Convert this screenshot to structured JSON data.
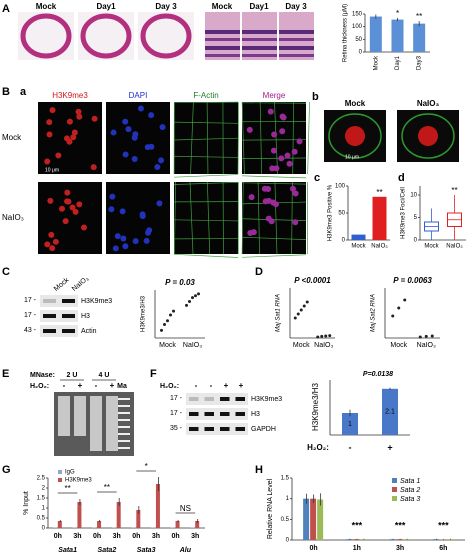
{
  "A": {
    "label": "A",
    "eye_labels": [
      "Mock",
      "Day1",
      "Day 3"
    ],
    "retina_labels": [
      "Mock",
      "Day1",
      "Day 3"
    ],
    "chart": {
      "type": "bar",
      "y_label": "Retina thickness (μM)",
      "categories": [
        "Mock",
        "Day1",
        "Day3"
      ],
      "values": [
        140,
        128,
        112
      ],
      "errors": [
        8,
        6,
        10
      ],
      "ylim": [
        0,
        150
      ],
      "yticks": [
        0,
        50,
        100,
        150
      ],
      "color": "#5b8fd6",
      "significance": [
        null,
        "*",
        "**"
      ]
    }
  },
  "B": {
    "label": "B",
    "sub_a": "a",
    "columns": [
      "H3K9me3",
      "DAPI",
      "F-Actin",
      "Merge"
    ],
    "rows": [
      "Mock",
      "NaIO₃"
    ],
    "scale": "10 μm",
    "sub_b": "b",
    "b_labels": [
      "Mock",
      "NaIO₃"
    ],
    "b_scale": "10 μm",
    "c": {
      "label": "c",
      "type": "bar",
      "y_label": "H3K9me3 Positive %",
      "categories": [
        "Mock",
        "NaIO₃"
      ],
      "values": [
        10,
        80
      ],
      "colors": [
        "#2f5fd0",
        "#e02020"
      ],
      "ylim": [
        0,
        100
      ],
      "yticks": [
        0,
        50,
        100
      ],
      "significance": [
        null,
        "**"
      ]
    },
    "d": {
      "label": "d",
      "type": "box",
      "y_label": "H3K9me3 Foci/Cell",
      "categories": [
        "Mock",
        "NaIO₃"
      ],
      "boxes": [
        [
          0,
          2,
          3,
          4,
          7
        ],
        [
          0,
          3,
          4.5,
          6,
          10
        ]
      ],
      "colors": [
        "#2f5fd0",
        "#e02020"
      ],
      "ylim": [
        0,
        12
      ],
      "yticks": [
        0,
        5,
        10
      ],
      "significance": [
        null,
        "**"
      ]
    }
  },
  "C": {
    "label": "C",
    "blot_lanes": [
      "Mock",
      "NaIO₃"
    ],
    "markers": [
      "17 -",
      "17 -",
      "43 -"
    ],
    "bands": [
      "H3K9me3",
      "H3",
      "Actin"
    ],
    "chart": {
      "type": "scatter",
      "p_value": "P = 0.03",
      "y_label": "H3K9me3/H3",
      "categories": [
        "Mock",
        "NaIO₃"
      ],
      "points": [
        [
          0.4,
          0.7,
          0.9,
          1.2,
          1.4
        ],
        [
          1.7,
          1.9,
          2.1,
          2.2,
          2.3
        ]
      ],
      "ylim": [
        0,
        2.5
      ]
    }
  },
  "D": {
    "label": "D",
    "charts": [
      {
        "type": "scatter",
        "p_value": "P <0.0001",
        "y_label": "Maj Sat1 RNA",
        "categories": [
          "Mock",
          "NaIO₃"
        ],
        "points": [
          [
            1.0,
            1.2,
            1.4,
            1.6,
            1.8
          ],
          [
            0.05,
            0.08,
            0.1,
            0.12
          ]
        ],
        "ylim": [
          0,
          2.5
        ]
      },
      {
        "type": "scatter",
        "p_value": "P = 0.0063",
        "y_label": "Maj Sat2 RNA",
        "categories": [
          "Mock",
          "NaIO₃"
        ],
        "points": [
          [
            1.1,
            1.5,
            1.9
          ],
          [
            0.05,
            0.08,
            0.1
          ]
        ],
        "ylim": [
          0,
          2.5
        ]
      }
    ]
  },
  "E": {
    "label": "E",
    "mnase_label": "MNase:",
    "mnase": [
      "2 U",
      "4 U"
    ],
    "h2o2_label": "H₂O₂:",
    "h2o2": [
      "-",
      "+",
      "-",
      "+"
    ],
    "marker": "Ma"
  },
  "F": {
    "label": "F",
    "h2o2_label": "H₂O₂:",
    "h2o2": [
      "-",
      "-",
      "+",
      "+"
    ],
    "markers": [
      "17 -",
      "17 -",
      "35 -"
    ],
    "bands": [
      "H3K9me3",
      "H3",
      "GAPDH"
    ],
    "chart": {
      "type": "bar",
      "p_value": "P=0.0138",
      "y_label": "H3K9me3/H3",
      "x_label": "H₂O₂:",
      "categories": [
        "-",
        "+"
      ],
      "values": [
        1,
        2.1
      ],
      "errors": [
        0.15,
        0.05
      ],
      "ylim": [
        0,
        2.5
      ],
      "color": "#4a78c8"
    }
  },
  "G": {
    "label": "G",
    "type": "bar",
    "y_label": "% Input",
    "categories": [
      "0h",
      "3h",
      "0h",
      "3h",
      "0h",
      "3h",
      "0h",
      "3h"
    ],
    "groups": [
      "Sata1",
      "Sata2",
      "Sata3",
      "Alu"
    ],
    "series": [
      {
        "name": "IgG",
        "color": "#9aa6c8",
        "values": [
          0.02,
          0.02,
          0.02,
          0.02,
          0.02,
          0.02,
          0.02,
          0.02
        ]
      },
      {
        "name": "H3K9me3",
        "color": "#c0504d",
        "values": [
          0.35,
          1.3,
          0.35,
          1.3,
          0.9,
          2.2,
          0.35,
          0.35
        ],
        "errors": [
          0.05,
          0.15,
          0.05,
          0.2,
          0.2,
          0.35,
          0.05,
          0.1
        ]
      }
    ],
    "ylim": [
      0,
      2.5
    ],
    "yticks": [
      0,
      0.5,
      1,
      1.5,
      2,
      2.5
    ],
    "significance": [
      "**",
      "**",
      "*",
      "NS"
    ]
  },
  "H": {
    "label": "H",
    "type": "bar",
    "y_label": "Relative RNA Level",
    "categories": [
      "0h",
      "1h",
      "3h",
      "6h"
    ],
    "series": [
      {
        "name": "Sata 1",
        "color": "#4f81bd",
        "values": [
          1.0,
          0.02,
          0.02,
          0.02
        ],
        "errors": [
          0.12,
          0.01,
          0.01,
          0.01
        ]
      },
      {
        "name": "Sata 2",
        "color": "#c0504d",
        "values": [
          1.0,
          0.02,
          0.02,
          0.01
        ],
        "errors": [
          0.1,
          0.01,
          0.01,
          0.01
        ]
      },
      {
        "name": "Sata 3",
        "color": "#9bbb59",
        "values": [
          0.98,
          0.02,
          0.02,
          0.02
        ],
        "errors": [
          0.15,
          0.01,
          0.01,
          0.01
        ]
      }
    ],
    "ylim": [
      0,
      1.5
    ],
    "yticks": [
      0,
      0.5,
      1,
      1.5
    ],
    "significance": [
      null,
      "***",
      "***",
      "***"
    ]
  }
}
